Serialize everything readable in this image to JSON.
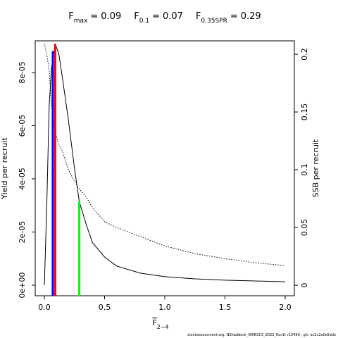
{
  "chart_data": {
    "type": "line",
    "title_operator": "=",
    "reference_points": [
      {
        "symbol": "F",
        "sub": "max",
        "value": 0.09,
        "yield_at": 9.08e-05,
        "color": "#ff0000"
      },
      {
        "symbol": "F",
        "sub": "0.1",
        "value": 0.07,
        "yield_at": 8.8e-05,
        "color": "#0000ff"
      },
      {
        "symbol": "F",
        "sub": "0.35SPR",
        "value": 0.29,
        "yield_at": 3.15e-05,
        "color": "#00ff00"
      }
    ],
    "x_label": {
      "main": "F",
      "sub": "2−4"
    },
    "y_label": "Yield per recruit",
    "y2_label": "SSB per recruit",
    "footer": "stockassessment.org, NShaddock_WKNSCS_2022_Run8, r15490 , git: ec2c2a0c6dde",
    "x": [
      0,
      0.02,
      0.04,
      0.06,
      0.09,
      0.12,
      0.15,
      0.2,
      0.25,
      0.29,
      0.35,
      0.4,
      0.5,
      0.6,
      0.8,
      1.0,
      1.25,
      1.5,
      1.75,
      2.0
    ],
    "series": [
      {
        "color": "#000000",
        "dash": "solid",
        "axis": "y",
        "values": [
          0,
          3e-05,
          6.75e-05,
          8.2e-05,
          9.08e-05,
          8.7e-05,
          7.8e-05,
          6.2e-05,
          4.4e-05,
          3.15e-05,
          2.25e-05,
          1.6e-05,
          1.06e-05,
          7.2e-06,
          4.5e-06,
          3.2e-06,
          2.4e-06,
          1.9e-06,
          1.6e-06,
          1.3e-06
        ]
      },
      {
        "color": "#000000",
        "dash": "dotted",
        "axis": "y2",
        "values": [
          0.209,
          0.2,
          0.186,
          0.155,
          0.132,
          0.122,
          0.116,
          0.1,
          0.09,
          0.0835,
          0.076,
          0.067,
          0.055,
          0.05,
          0.042,
          0.034,
          0.0274,
          0.023,
          0.0195,
          0.017
        ]
      }
    ],
    "xlim": [
      -0.076,
      2.076
    ],
    "xticks": [
      {
        "value": 0,
        "label": "0.0"
      },
      0.5,
      {
        "value": 1,
        "label": "1.0"
      },
      1.5,
      {
        "value": 2,
        "label": "2.0"
      }
    ],
    "ylim": [
      -3.97e-06,
      9.19e-05
    ],
    "yticks": [
      {
        "value": 0,
        "label": "0e+00"
      },
      {
        "value": 2e-05,
        "label": "2e-05"
      },
      {
        "value": 4e-05,
        "label": "4e-05"
      },
      {
        "value": 6e-05,
        "label": "6e-05"
      },
      {
        "value": 8e-05,
        "label": "8e-05"
      }
    ],
    "y2lim": [
      -0.0091,
      0.2116
    ],
    "y2ticks": [
      0,
      0.05,
      0.1,
      0.15,
      0.2
    ]
  }
}
